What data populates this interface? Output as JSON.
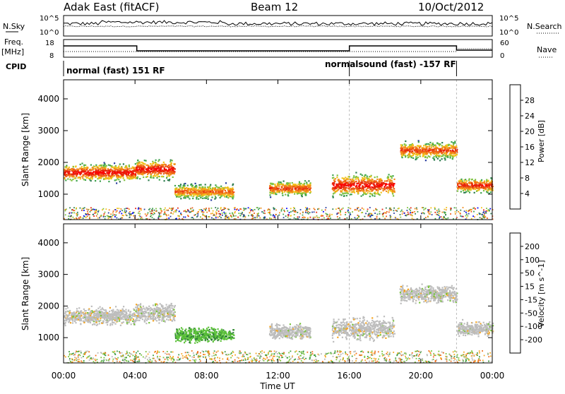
{
  "header": {
    "title": "Adak East (fitACF)",
    "beam": "Beam 12",
    "date": "10/Oct/2012"
  },
  "noise_panel": {
    "left_label": "N.Sky",
    "right_label": "N.Search",
    "left_ticks": [
      "10^5",
      "10^0"
    ],
    "right_ticks": [
      "10^5",
      "10^0"
    ]
  },
  "freq_panel": {
    "left_label_1": "Freq.",
    "left_label_2": "[MHz]",
    "right_label": "Nave",
    "left_ticks": [
      "18",
      "8"
    ],
    "right_ticks": [
      "60",
      "0"
    ]
  },
  "cpid_panel": {
    "label": "CPID",
    "modes": [
      {
        "text": "normal (fast) 151 RF",
        "start_hour": 0,
        "end_hour": 16
      },
      {
        "text": "normalsound (fast) -157 RF",
        "start_hour": 16,
        "end_hour": 22
      }
    ],
    "boundaries_hours": [
      0,
      16,
      22
    ]
  },
  "colors": {
    "power_scale": [
      "#0000ff",
      "#2a3fa0",
      "#2e7d4f",
      "#3fa34d",
      "#7fc241",
      "#f2c118",
      "#f28c1a",
      "#ee5a14",
      "#e6240e",
      "#ff0000"
    ],
    "velocity_scale": [
      "#ff0000",
      "#e8321a",
      "#f06c1a",
      "#f5a623",
      "#b8b8b4",
      "#b8b8b4",
      "#79c43c",
      "#3c9a3c",
      "#2e6e9a",
      "#0a1a9a"
    ],
    "ground_scatter": "#bdbdbd",
    "vel_green": "#5cc23a",
    "vel_dark_green": "#2e7d3a"
  },
  "chart_data": [
    {
      "type": "heatmap",
      "name_on_chart": "",
      "ylabel": "Slant Range [km]",
      "yticks": [
        "1000",
        "2000",
        "3000",
        "4000"
      ],
      "ylim": [
        200,
        4600
      ],
      "colorbar_label": "Power [dB]",
      "colorbar_ticks": [
        "4",
        "8",
        "12",
        "16",
        "20",
        "24",
        "28"
      ],
      "colorbar_range": [
        0,
        30
      ],
      "echo_regions": [
        {
          "start_hour": 0.0,
          "end_hour": 4.0,
          "range_center_km": 1700,
          "range_width_km": 700,
          "peak_power_db": 28
        },
        {
          "start_hour": 4.0,
          "end_hour": 6.2,
          "range_center_km": 1800,
          "range_width_km": 800,
          "peak_power_db": 28
        },
        {
          "start_hour": 6.2,
          "end_hour": 9.5,
          "range_center_km": 1100,
          "range_width_km": 600,
          "peak_power_db": 22
        },
        {
          "start_hour": 11.5,
          "end_hour": 13.8,
          "range_center_km": 1200,
          "range_width_km": 600,
          "peak_power_db": 24
        },
        {
          "start_hour": 15.0,
          "end_hour": 18.5,
          "range_center_km": 1300,
          "range_width_km": 900,
          "peak_power_db": 28
        },
        {
          "start_hour": 18.8,
          "end_hour": 22.0,
          "range_center_km": 2400,
          "range_width_km": 700,
          "peak_power_db": 24
        },
        {
          "start_hour": 22.0,
          "end_hour": 24.0,
          "range_center_km": 1300,
          "range_width_km": 600,
          "peak_power_db": 26
        }
      ]
    },
    {
      "type": "heatmap",
      "ylabel": "Slant Range [km]",
      "yticks": [
        "1000",
        "2000",
        "3000",
        "4000"
      ],
      "ylim": [
        200,
        4600
      ],
      "colorbar_label": "Velocity [m s^-1]",
      "colorbar_ticks": [
        "200",
        "100",
        "50",
        "15",
        "-15",
        "-50",
        "-100",
        "-200"
      ],
      "colorbar_range": [
        -250,
        250
      ],
      "echo_regions": [
        {
          "start_hour": 0.0,
          "end_hour": 4.0,
          "range_center_km": 1700,
          "range_width_km": 700,
          "velocity_ms": 0
        },
        {
          "start_hour": 4.0,
          "end_hour": 6.2,
          "range_center_km": 1800,
          "range_width_km": 800,
          "velocity_ms": 0
        },
        {
          "start_hour": 6.2,
          "end_hour": 9.5,
          "range_center_km": 1100,
          "range_width_km": 600,
          "velocity_ms": 40
        },
        {
          "start_hour": 11.5,
          "end_hour": 13.8,
          "range_center_km": 1200,
          "range_width_km": 600,
          "velocity_ms": 0
        },
        {
          "start_hour": 15.0,
          "end_hour": 18.5,
          "range_center_km": 1300,
          "range_width_km": 900,
          "velocity_ms": 0
        },
        {
          "start_hour": 18.8,
          "end_hour": 22.0,
          "range_center_km": 2400,
          "range_width_km": 700,
          "velocity_ms": 0
        },
        {
          "start_hour": 22.0,
          "end_hour": 24.0,
          "range_center_km": 1300,
          "range_width_km": 600,
          "velocity_ms": 0
        }
      ]
    }
  ],
  "x_axis": {
    "label": "Time UT",
    "ticks": [
      "00:00",
      "04:00",
      "08:00",
      "12:00",
      "16:00",
      "20:00",
      "00:00"
    ]
  }
}
